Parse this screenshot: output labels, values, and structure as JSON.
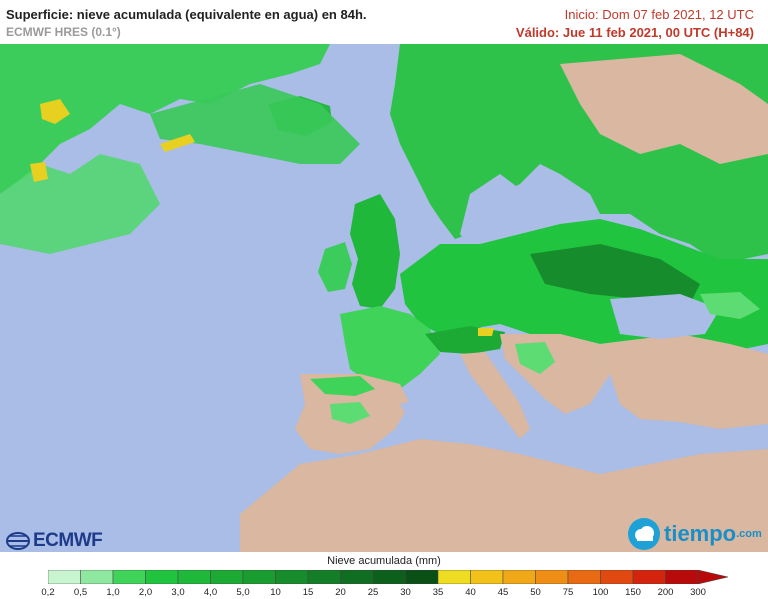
{
  "header": {
    "title": "Superficie: nieve acumulada (equivalente en agua) en 84h.",
    "model": "ECMWF HRES (0.1°)",
    "init": "Inicio: Dom 07 feb 2021, 12 UTC",
    "valid": "Válido: Jue 11 feb 2021, 00 UTC (H+84)"
  },
  "logos": {
    "left": "ECMWF",
    "right_main": "tiempo",
    "right_suffix": ".com"
  },
  "legend": {
    "title": "Nieve acumulada (mm)",
    "ticks": [
      "0,2",
      "0,5",
      "1,0",
      "2,0",
      "3,0",
      "4,0",
      "5,0",
      "10",
      "15",
      "20",
      "25",
      "30",
      "35",
      "40",
      "45",
      "50",
      "75",
      "100",
      "150",
      "200",
      "300"
    ],
    "colors": [
      "#c8f5d0",
      "#8ee8a0",
      "#3fd35a",
      "#20c43e",
      "#1fb83a",
      "#1caa35",
      "#199c30",
      "#168c2c",
      "#137d27",
      "#106e22",
      "#0d5f1c",
      "#0a5016",
      "#eedd22",
      "#f2c21a",
      "#f0a818",
      "#ee8e15",
      "#e86a12",
      "#e04a10",
      "#d4240d",
      "#b80a0a"
    ]
  },
  "colors": {
    "sea": "#a9bde6",
    "land": "#d9b7a0",
    "snow_light": "#5ddc74",
    "snow_mid": "#2ec24a",
    "snow_dark": "#1a9a35",
    "snow_yellow": "#e8d020"
  }
}
